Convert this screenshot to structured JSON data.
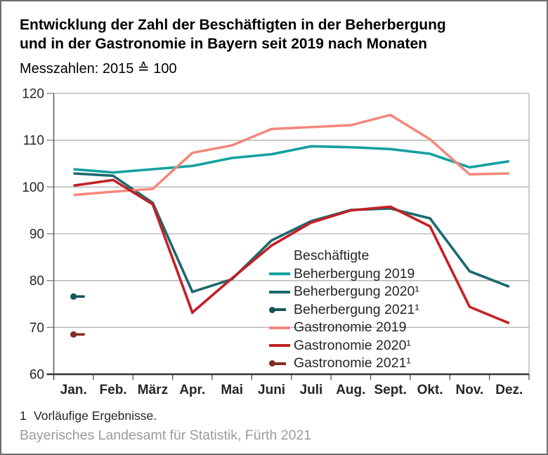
{
  "header": {
    "title_line1": "Entwicklung der Zahl der Beschäftigten in der Beherbergung",
    "title_line2": "und in der Gastronomie in Bayern seit 2019 nach Monaten",
    "subtitle": "Messzahlen: 2015 ≙ 100"
  },
  "legend": {
    "title": "Beschäftigte",
    "entries": [
      {
        "label": "Beherbergung 2019",
        "color": "#14a0a0",
        "marker": "line"
      },
      {
        "label": "Beherbergung 2020¹",
        "color": "#1a696e",
        "marker": "dot-line-none",
        "marker_type": "line"
      },
      {
        "label": "Beherbergung 2021¹",
        "color": "#16555a",
        "marker_type": "dot-line"
      },
      {
        "label": "Gastronomie 2019",
        "color": "#f2897b",
        "marker_type": "line"
      },
      {
        "label": "Gastronomie 2020¹",
        "color": "#c42026",
        "marker_type": "line"
      },
      {
        "label": "Gastronomie 2021¹",
        "color": "#842b26",
        "marker_type": "dot-line"
      }
    ]
  },
  "footnote": {
    "marker": "1",
    "text": "Vorläufige Ergebnisse."
  },
  "source": "Bayerisches Landesamt für Statistik, Fürth 2021",
  "chart_data": {
    "type": "line",
    "title": "Entwicklung der Zahl der Beschäftigten in der Beherbergung und in der Gastronomie in Bayern seit 2019 nach Monaten",
    "subtitle": "Messzahlen: 2015 ≙ 100",
    "xlabel": "",
    "ylabel": "",
    "categories": [
      "Jan.",
      "Feb.",
      "März",
      "Apr.",
      "Mai",
      "Juni",
      "Juli",
      "Aug.",
      "Sept.",
      "Okt.",
      "Nov.",
      "Dez."
    ],
    "ylim": [
      60,
      120
    ],
    "yticks": [
      60,
      70,
      80,
      90,
      100,
      110,
      120
    ],
    "grid": "horizontal",
    "legend_position": "inside-center-right",
    "series": [
      {
        "name": "Beherbergung 2019",
        "style": "line",
        "color": "#14a0a0",
        "values": [
          103.8,
          103.1,
          103.8,
          104.5,
          106.2,
          107.0,
          108.7,
          108.5,
          108.1,
          107.1,
          104.2,
          105.5
        ]
      },
      {
        "name": "Beherbergung 2020¹",
        "style": "line",
        "color": "#1a696e",
        "values": [
          102.9,
          102.4,
          96.6,
          77.6,
          80.3,
          88.6,
          92.7,
          95.1,
          95.4,
          93.3,
          82.0,
          78.7
        ]
      },
      {
        "name": "Beherbergung 2021¹",
        "style": "dot",
        "color": "#16555a",
        "values": [
          76.6,
          null,
          null,
          null,
          null,
          null,
          null,
          null,
          null,
          null,
          null,
          null
        ]
      },
      {
        "name": "Gastronomie 2019",
        "style": "line",
        "color": "#f2897b",
        "values": [
          98.3,
          99.0,
          99.6,
          107.3,
          108.9,
          112.4,
          112.8,
          113.2,
          115.4,
          110.2,
          102.7,
          102.9
        ]
      },
      {
        "name": "Gastronomie 2020¹",
        "style": "line",
        "color": "#c42026",
        "values": [
          100.3,
          101.5,
          96.3,
          73.2,
          80.5,
          87.5,
          92.4,
          95.0,
          95.8,
          91.6,
          74.4,
          70.9
        ]
      },
      {
        "name": "Gastronomie 2021¹",
        "style": "dot",
        "color": "#842b26",
        "values": [
          68.5,
          null,
          null,
          null,
          null,
          null,
          null,
          null,
          null,
          null,
          null,
          null
        ]
      }
    ]
  }
}
